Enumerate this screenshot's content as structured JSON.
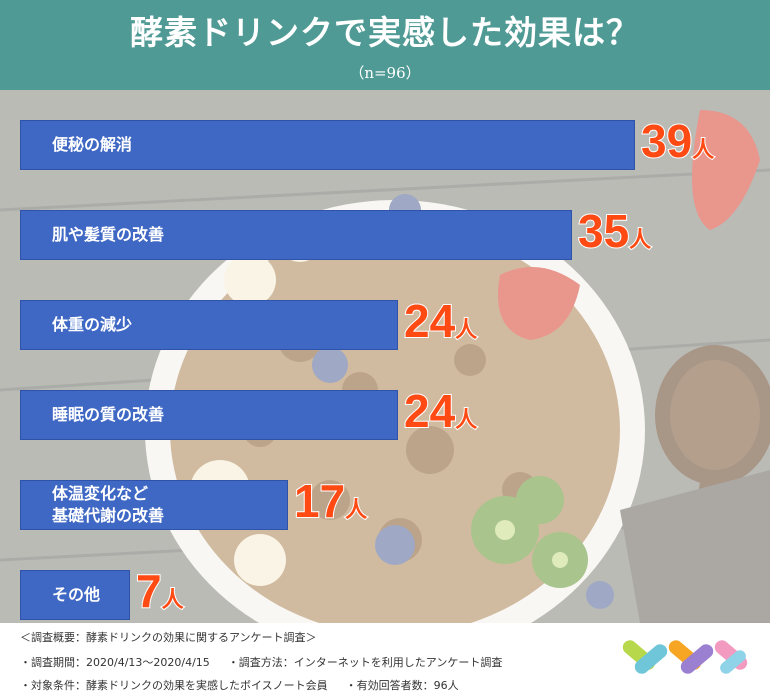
{
  "title": "酵素ドリンクで実感した効果は？",
  "subtitle": "（n=96）",
  "chart_data": {
    "type": "bar",
    "orientation": "horizontal",
    "categories": [
      "便秘の解消",
      "肌や髪質の改善",
      "体重の減少",
      "睡眠の質の改善",
      "体温変化など\n基礎代謝の改善",
      "その他"
    ],
    "values": [
      39,
      35,
      24,
      24,
      17,
      7
    ],
    "unit": "人",
    "xlim": [
      0,
      39
    ],
    "bar_color": "#3f67c4",
    "value_color": "#ff4a14"
  },
  "footnotes": {
    "line1": "＜調査概要：酵素ドリンクの効果に関するアンケート調査＞",
    "line2a": "・調査期間：2020/4/13〜2020/4/15",
    "line2b": "・調査方法：インターネットを利用したアンケート調査",
    "line3a": "・対象条件：酵素ドリンクの効果を実感したボイスノート会員",
    "line3b": "・有効回答者数：96人"
  },
  "colors": {
    "header": "#4f9a94",
    "logo": [
      "#b7d84a",
      "#6fc6d8",
      "#f6a623",
      "#9b7fd1",
      "#f39ac0",
      "#8fd3e8"
    ]
  }
}
